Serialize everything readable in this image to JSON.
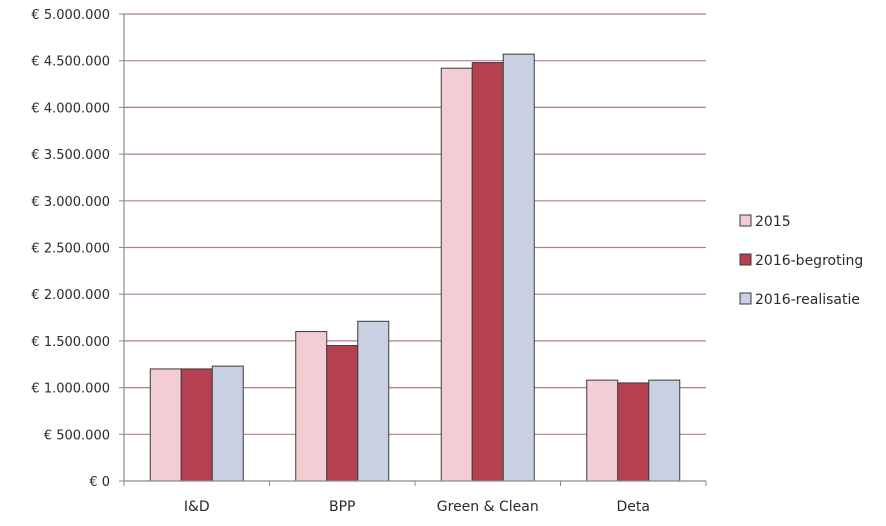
{
  "chart_data": {
    "type": "bar",
    "title": "",
    "xlabel": "",
    "ylabel": "",
    "categories": [
      "I&D",
      "BPP",
      "Green & Clean",
      "Deta"
    ],
    "series": [
      {
        "name": "2015",
        "color": "#f2cdd3",
        "values": [
          1200000,
          1600000,
          4420000,
          1080000
        ]
      },
      {
        "name": "2016-begroting",
        "color": "#b5404f",
        "values": [
          1200000,
          1450000,
          4480000,
          1050000
        ]
      },
      {
        "name": "2016-realisatie",
        "color": "#c8d0e2",
        "values": [
          1230000,
          1710000,
          4570000,
          1080000
        ]
      }
    ],
    "ylim": [
      0,
      5000000
    ],
    "ytick_labels": [
      "€ 0",
      "€ 500.000",
      "€ 1.000.000",
      "€ 1.500.000",
      "€ 2.000.000",
      "€ 2.500.000",
      "€ 3.000.000",
      "€ 3.500.000",
      "€ 4.000.000",
      "€ 4.500.000",
      "€ 5.000.000"
    ],
    "grid": true,
    "gridline_color": "#b07f8c",
    "legend_position": "right"
  }
}
